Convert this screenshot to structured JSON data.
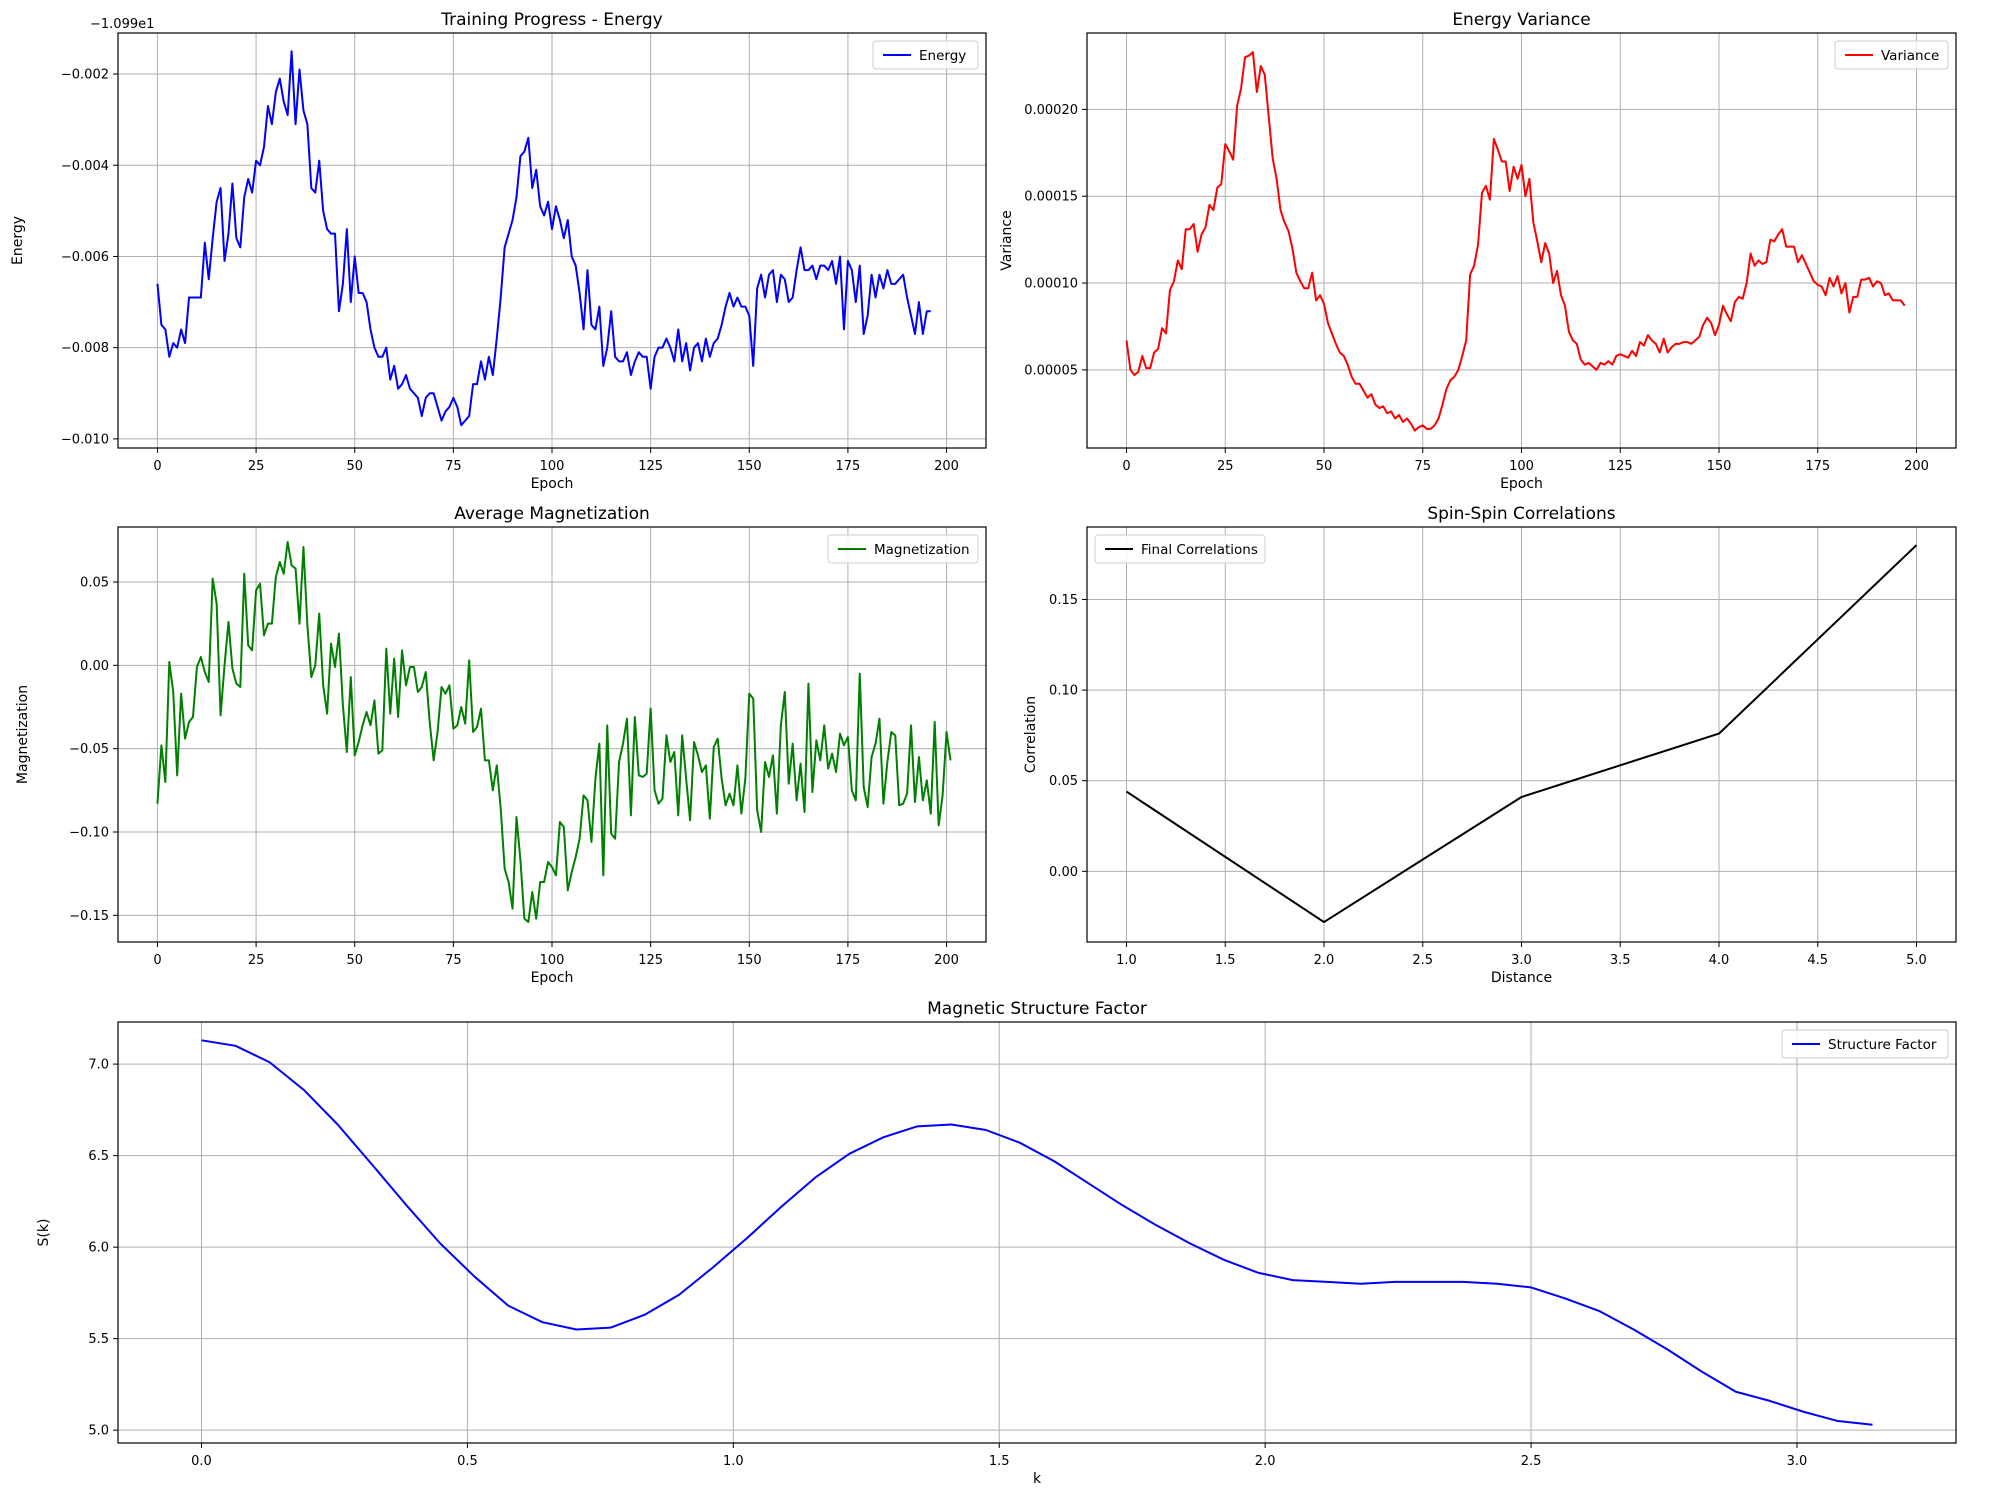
{
  "chart_data": [
    {
      "id": "energy",
      "type": "line",
      "title": "Training Progress - Energy",
      "xlabel": "Epoch",
      "ylabel": "Energy",
      "offset_label": "−1.099e1",
      "xlim": [
        -10,
        210
      ],
      "ylim": [
        -0.0102,
        -0.0011
      ],
      "xticks": [
        0,
        25,
        50,
        75,
        100,
        125,
        150,
        175,
        200
      ],
      "xtick_labels": [
        "0",
        "25",
        "50",
        "75",
        "100",
        "125",
        "150",
        "175",
        "200"
      ],
      "yticks": [
        -0.01,
        -0.008,
        -0.006,
        -0.004,
        -0.002
      ],
      "ytick_labels": [
        "−0.010",
        "−0.008",
        "−0.006",
        "−0.004",
        "−0.002"
      ],
      "grid": true,
      "legend_position": "top-right",
      "series": [
        {
          "name": "Energy",
          "color": "#0000ff",
          "x_start": 0,
          "x_step": 1,
          "values": [
            -0.0066,
            -0.0075,
            -0.0076,
            -0.0082,
            -0.0079,
            -0.008,
            -0.0076,
            -0.0079,
            -0.0069,
            -0.0069,
            -0.0069,
            -0.0069,
            -0.0057,
            -0.0065,
            -0.0056,
            -0.0048,
            -0.0045,
            -0.0061,
            -0.0055,
            -0.0044,
            -0.0056,
            -0.0058,
            -0.0047,
            -0.0043,
            -0.0046,
            -0.0039,
            -0.004,
            -0.0036,
            -0.0027,
            -0.0031,
            -0.0024,
            -0.0021,
            -0.0026,
            -0.0029,
            -0.0015,
            -0.0031,
            -0.0019,
            -0.0028,
            -0.0031,
            -0.0045,
            -0.0046,
            -0.0039,
            -0.005,
            -0.0054,
            -0.0055,
            -0.0055,
            -0.0072,
            -0.0066,
            -0.0054,
            -0.007,
            -0.006,
            -0.0068,
            -0.0068,
            -0.007,
            -0.0076,
            -0.008,
            -0.0082,
            -0.0082,
            -0.008,
            -0.0087,
            -0.0084,
            -0.0089,
            -0.0088,
            -0.0086,
            -0.0089,
            -0.009,
            -0.0091,
            -0.0095,
            -0.0091,
            -0.009,
            -0.009,
            -0.0093,
            -0.0096,
            -0.0094,
            -0.0093,
            -0.0091,
            -0.0093,
            -0.0097,
            -0.0096,
            -0.0095,
            -0.0088,
            -0.0088,
            -0.0083,
            -0.0087,
            -0.0082,
            -0.0086,
            -0.0078,
            -0.0069,
            -0.0058,
            -0.0055,
            -0.0052,
            -0.0047,
            -0.0038,
            -0.0037,
            -0.0034,
            -0.0045,
            -0.0041,
            -0.0049,
            -0.0051,
            -0.0048,
            -0.0054,
            -0.0049,
            -0.0052,
            -0.0056,
            -0.0052,
            -0.006,
            -0.0062,
            -0.0068,
            -0.0076,
            -0.0063,
            -0.0075,
            -0.0076,
            -0.0071,
            -0.0084,
            -0.008,
            -0.0072,
            -0.0082,
            -0.0083,
            -0.0083,
            -0.0081,
            -0.0086,
            -0.0083,
            -0.0081,
            -0.0082,
            -0.0082,
            -0.0089,
            -0.0082,
            -0.008,
            -0.008,
            -0.0078,
            -0.008,
            -0.0083,
            -0.0076,
            -0.0083,
            -0.0079,
            -0.0085,
            -0.008,
            -0.0079,
            -0.0083,
            -0.0078,
            -0.0082,
            -0.0079,
            -0.0078,
            -0.0075,
            -0.0071,
            -0.0068,
            -0.0071,
            -0.0069,
            -0.0071,
            -0.0071,
            -0.0073,
            -0.0084,
            -0.0067,
            -0.0064,
            -0.0069,
            -0.0064,
            -0.0063,
            -0.007,
            -0.0064,
            -0.0065,
            -0.007,
            -0.0069,
            -0.0063,
            -0.0058,
            -0.0063,
            -0.0063,
            -0.0062,
            -0.0065,
            -0.0062,
            -0.0062,
            -0.0063,
            -0.0061,
            -0.0066,
            -0.006,
            -0.0076,
            -0.0061,
            -0.0063,
            -0.007,
            -0.0062,
            -0.0077,
            -0.0073,
            -0.0064,
            -0.0069,
            -0.0064,
            -0.0067,
            -0.0063,
            -0.0066,
            -0.0066,
            -0.0065,
            -0.0064,
            -0.0069,
            -0.0073,
            -0.0077,
            -0.007,
            -0.0077,
            -0.0072,
            -0.0072
          ]
        }
      ]
    },
    {
      "id": "variance",
      "type": "line",
      "title": "Energy Variance",
      "xlabel": "Epoch",
      "ylabel": "Variance",
      "xlim": [
        -10,
        210
      ],
      "ylim": [
        5e-06,
        0.000244
      ],
      "xticks": [
        0,
        25,
        50,
        75,
        100,
        125,
        150,
        175,
        200
      ],
      "xtick_labels": [
        "0",
        "25",
        "50",
        "75",
        "100",
        "125",
        "150",
        "175",
        "200"
      ],
      "yticks": [
        5e-05,
        0.0001,
        0.00015,
        0.0002
      ],
      "ytick_labels": [
        "0.00005",
        "0.00010",
        "0.00015",
        "0.00020"
      ],
      "grid": true,
      "legend_position": "top-right",
      "series": [
        {
          "name": "Variance",
          "color": "#ff0000",
          "x_start": 0,
          "x_step": 1,
          "values": [
            6.7e-05,
            5e-05,
            4.7e-05,
            4.9e-05,
            5.8e-05,
            5.1e-05,
            5.1e-05,
            6e-05,
            6.2e-05,
            7.4e-05,
            7.1e-05,
            9.6e-05,
            0.000101,
            0.000113,
            0.000108,
            0.000131,
            0.000131,
            0.000134,
            0.000118,
            0.000128,
            0.000132,
            0.000145,
            0.000142,
            0.000155,
            0.000157,
            0.00018,
            0.000176,
            0.000171,
            0.000202,
            0.000212,
            0.00023,
            0.000231,
            0.000233,
            0.00021,
            0.000225,
            0.00022,
            0.000196,
            0.000172,
            0.00016,
            0.000142,
            0.000135,
            0.00013,
            0.00012,
            0.000106,
            0.000101,
            9.7e-05,
            9.7e-05,
            0.000106,
            9e-05,
            9.3e-05,
            8.8e-05,
            7.7e-05,
            7.1e-05,
            6.5e-05,
            6e-05,
            5.8e-05,
            5.3e-05,
            4.6e-05,
            4.2e-05,
            4.2e-05,
            3.8e-05,
            3.4e-05,
            3.6e-05,
            3e-05,
            2.8e-05,
            2.9e-05,
            2.5e-05,
            2.6e-05,
            2.2e-05,
            2.4e-05,
            2e-05,
            2.2e-05,
            1.9e-05,
            1.5e-05,
            1.7e-05,
            1.8e-05,
            1.6e-05,
            1.6e-05,
            1.8e-05,
            2.2e-05,
            3e-05,
            3.9e-05,
            4.4e-05,
            4.6e-05,
            5e-05,
            5.8e-05,
            6.7e-05,
            0.000105,
            0.00011,
            0.000122,
            0.000152,
            0.000156,
            0.000148,
            0.000183,
            0.000177,
            0.00017,
            0.00017,
            0.000153,
            0.000167,
            0.00016,
            0.000168,
            0.00015,
            0.00016,
            0.000135,
            0.000124,
            0.000112,
            0.000123,
            0.000117,
            0.0001,
            0.000107,
            9.3e-05,
            8.7e-05,
            7.2e-05,
            6.7e-05,
            6.5e-05,
            5.6e-05,
            5.3e-05,
            5.4e-05,
            5.2e-05,
            5e-05,
            5.4e-05,
            5.3e-05,
            5.5e-05,
            5.3e-05,
            5.8e-05,
            5.9e-05,
            5.8e-05,
            5.7e-05,
            6.1e-05,
            5.8e-05,
            6.6e-05,
            6.4e-05,
            7e-05,
            6.7e-05,
            6.5e-05,
            6e-05,
            6.8e-05,
            6e-05,
            6.3e-05,
            6.5e-05,
            6.5e-05,
            6.6e-05,
            6.6e-05,
            6.5e-05,
            6.7e-05,
            6.9e-05,
            7.6e-05,
            8e-05,
            7.7e-05,
            7e-05,
            7.6e-05,
            8.7e-05,
            8.2e-05,
            7.8e-05,
            8.9e-05,
            9.2e-05,
            9.1e-05,
            0.0001,
            0.000117,
            0.00011,
            0.000113,
            0.000111,
            0.000112,
            0.000125,
            0.000124,
            0.000128,
            0.000131,
            0.000121,
            0.000121,
            0.000121,
            0.000112,
            0.000116,
            0.000111,
            0.000106,
            0.000101,
            9.9e-05,
            9.8e-05,
            9.3e-05,
            0.000103,
            9.8e-05,
            0.000104,
            9.4e-05,
            0.0001,
            8.3e-05,
            9.2e-05,
            9.2e-05,
            0.000102,
            0.000102,
            0.000103,
            9.8e-05,
            0.000101,
            0.0001,
            9.3e-05,
            9.4e-05,
            9e-05,
            9e-05,
            9e-05,
            8.7e-05
          ]
        }
      ]
    },
    {
      "id": "magnetization",
      "type": "line",
      "title": "Average Magnetization",
      "xlabel": "Epoch",
      "ylabel": "Magnetization",
      "xlim": [
        -10,
        210
      ],
      "ylim": [
        -0.166,
        0.083
      ],
      "xticks": [
        0,
        25,
        50,
        75,
        100,
        125,
        150,
        175,
        200
      ],
      "xtick_labels": [
        "0",
        "25",
        "50",
        "75",
        "100",
        "125",
        "150",
        "175",
        "200"
      ],
      "yticks": [
        -0.15,
        -0.1,
        -0.05,
        0.0,
        0.05
      ],
      "ytick_labels": [
        "−0.15",
        "−0.10",
        "−0.05",
        "0.00",
        "0.05"
      ],
      "grid": true,
      "legend_position": "top-right",
      "series": [
        {
          "name": "Magnetization",
          "color": "#008000",
          "x_start": 0,
          "x_step": 1,
          "values": [
            -0.083,
            -0.048,
            -0.07,
            0.002,
            -0.016,
            -0.066,
            -0.017,
            -0.044,
            -0.034,
            -0.031,
            -0.001,
            0.005,
            -0.004,
            -0.01,
            0.052,
            0.037,
            -0.03,
            0.0,
            0.026,
            -0.002,
            -0.011,
            -0.013,
            0.055,
            0.012,
            0.009,
            0.045,
            0.049,
            0.018,
            0.025,
            0.025,
            0.053,
            0.062,
            0.055,
            0.074,
            0.06,
            0.058,
            0.025,
            0.071,
            0.024,
            -0.007,
            0.0,
            0.031,
            -0.012,
            -0.029,
            0.013,
            -0.001,
            0.019,
            -0.024,
            -0.052,
            -0.007,
            -0.054,
            -0.046,
            -0.036,
            -0.028,
            -0.036,
            -0.021,
            -0.053,
            -0.051,
            0.01,
            -0.029,
            0.004,
            -0.031,
            0.009,
            -0.012,
            -0.001,
            -0.001,
            -0.016,
            -0.013,
            -0.004,
            -0.034,
            -0.057,
            -0.04,
            -0.013,
            -0.017,
            -0.012,
            -0.038,
            -0.036,
            -0.025,
            -0.035,
            0.003,
            -0.04,
            -0.037,
            -0.026,
            -0.057,
            -0.057,
            -0.075,
            -0.06,
            -0.086,
            -0.122,
            -0.13,
            -0.146,
            -0.091,
            -0.117,
            -0.152,
            -0.154,
            -0.136,
            -0.152,
            -0.13,
            -0.13,
            -0.118,
            -0.121,
            -0.126,
            -0.094,
            -0.097,
            -0.135,
            -0.124,
            -0.115,
            -0.104,
            -0.078,
            -0.081,
            -0.106,
            -0.068,
            -0.047,
            -0.126,
            -0.036,
            -0.101,
            -0.104,
            -0.058,
            -0.047,
            -0.032,
            -0.09,
            -0.031,
            -0.066,
            -0.067,
            -0.065,
            -0.026,
            -0.075,
            -0.083,
            -0.08,
            -0.042,
            -0.058,
            -0.052,
            -0.09,
            -0.042,
            -0.068,
            -0.093,
            -0.046,
            -0.054,
            -0.064,
            -0.06,
            -0.092,
            -0.049,
            -0.044,
            -0.068,
            -0.084,
            -0.077,
            -0.084,
            -0.06,
            -0.089,
            -0.068,
            -0.017,
            -0.02,
            -0.087,
            -0.1,
            -0.058,
            -0.067,
            -0.054,
            -0.089,
            -0.036,
            -0.016,
            -0.071,
            -0.047,
            -0.081,
            -0.059,
            -0.088,
            -0.011,
            -0.076,
            -0.045,
            -0.057,
            -0.036,
            -0.062,
            -0.053,
            -0.064,
            -0.041,
            -0.048,
            -0.043,
            -0.075,
            -0.081,
            -0.005,
            -0.073,
            -0.085,
            -0.055,
            -0.047,
            -0.032,
            -0.083,
            -0.058,
            -0.04,
            -0.042,
            -0.084,
            -0.083,
            -0.077,
            -0.036,
            -0.082,
            -0.055,
            -0.081,
            -0.069,
            -0.089,
            -0.034,
            -0.096,
            -0.078,
            -0.04,
            -0.057
          ]
        }
      ]
    },
    {
      "id": "correlations",
      "type": "line",
      "title": "Spin-Spin Correlations",
      "xlabel": "Distance",
      "ylabel": "Correlation",
      "xlim": [
        0.8,
        5.2
      ],
      "ylim": [
        -0.039,
        0.19
      ],
      "xticks": [
        1.0,
        1.5,
        2.0,
        2.5,
        3.0,
        3.5,
        4.0,
        4.5,
        5.0
      ],
      "xtick_labels": [
        "1.0",
        "1.5",
        "2.0",
        "2.5",
        "3.0",
        "3.5",
        "4.0",
        "4.5",
        "5.0"
      ],
      "yticks": [
        0.0,
        0.05,
        0.1,
        0.15
      ],
      "ytick_labels": [
        "0.00",
        "0.05",
        "0.10",
        "0.15"
      ],
      "grid": true,
      "legend_position": "top-left",
      "series": [
        {
          "name": "Final Correlations",
          "color": "#000000",
          "x": [
            1,
            2,
            3,
            4,
            5
          ],
          "values": [
            0.044,
            -0.028,
            0.041,
            0.076,
            0.18
          ]
        }
      ]
    },
    {
      "id": "structure",
      "type": "line",
      "title": "Magnetic Structure Factor",
      "xlabel": "k",
      "ylabel": "S(k)",
      "xlim": [
        -0.157,
        3.299
      ],
      "ylim": [
        4.93,
        7.23
      ],
      "xticks": [
        0.0,
        0.5,
        1.0,
        1.5,
        2.0,
        2.5,
        3.0
      ],
      "xtick_labels": [
        "0.0",
        "0.5",
        "1.0",
        "1.5",
        "2.0",
        "2.5",
        "3.0"
      ],
      "yticks": [
        5.0,
        5.5,
        6.0,
        6.5,
        7.0
      ],
      "ytick_labels": [
        "5.0",
        "5.5",
        "6.0",
        "6.5",
        "7.0"
      ],
      "grid": true,
      "legend_position": "top-right",
      "series": [
        {
          "name": "Structure Factor",
          "color": "#0000ff",
          "x": [
            0.0,
            0.064,
            0.128,
            0.192,
            0.256,
            0.321,
            0.385,
            0.449,
            0.513,
            0.577,
            0.641,
            0.705,
            0.769,
            0.833,
            0.898,
            0.962,
            1.026,
            1.09,
            1.154,
            1.218,
            1.282,
            1.346,
            1.41,
            1.475,
            1.539,
            1.603,
            1.667,
            1.731,
            1.795,
            1.859,
            1.923,
            1.987,
            2.052,
            2.116,
            2.18,
            2.244,
            2.308,
            2.372,
            2.436,
            2.5,
            2.564,
            2.629,
            2.693,
            2.757,
            2.821,
            2.885,
            2.949,
            3.013,
            3.077,
            3.142
          ],
          "values": [
            7.13,
            7.1,
            7.01,
            6.86,
            6.67,
            6.45,
            6.23,
            6.02,
            5.84,
            5.68,
            5.59,
            5.55,
            5.56,
            5.63,
            5.74,
            5.89,
            6.05,
            6.22,
            6.38,
            6.51,
            6.6,
            6.66,
            6.67,
            6.64,
            6.57,
            6.47,
            6.35,
            6.23,
            6.12,
            6.02,
            5.93,
            5.86,
            5.82,
            5.81,
            5.8,
            5.81,
            5.81,
            5.81,
            5.8,
            5.78,
            5.72,
            5.65,
            5.55,
            5.44,
            5.32,
            5.21,
            5.16,
            5.1,
            5.05,
            5.03
          ]
        }
      ]
    }
  ]
}
